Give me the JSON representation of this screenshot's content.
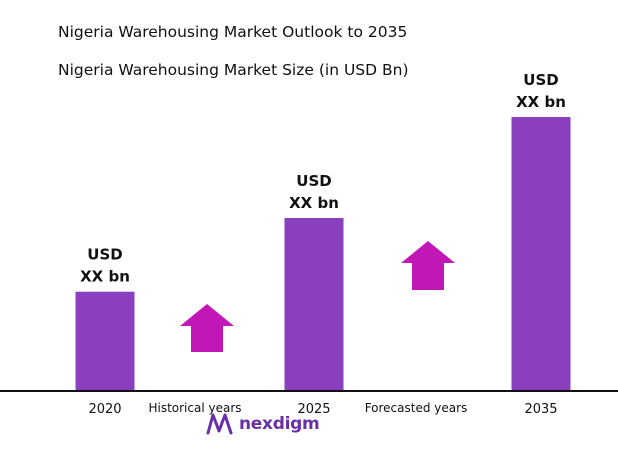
{
  "title": "Nigeria Warehousing Market Outlook to 2035",
  "subtitle": "Nigeria Warehousing Market Size (in USD Bn)",
  "periods": {
    "historical": "Historical years",
    "forecast": "Forecasted years"
  },
  "logo_text": "nexdigm",
  "colors": {
    "bar": "#8a3fbe",
    "arrow": "#c217b7",
    "axis": "#111111",
    "logo": "#6a2fa5"
  },
  "chart_data": {
    "type": "bar",
    "title": "Nigeria Warehousing Market Outlook to 2035",
    "subtitle": "Nigeria Warehousing Market Size (in USD Bn)",
    "categories": [
      "2020",
      "2025",
      "2035"
    ],
    "relative_values": [
      0.36,
      0.63,
      1.0
    ],
    "data_labels": [
      [
        "USD",
        "XX bn"
      ],
      [
        "USD",
        "XX bn"
      ],
      [
        "USD",
        "XX bn"
      ]
    ],
    "annotations": [
      "Historical years",
      "Forecasted years"
    ],
    "legend": "none",
    "grid": false
  }
}
